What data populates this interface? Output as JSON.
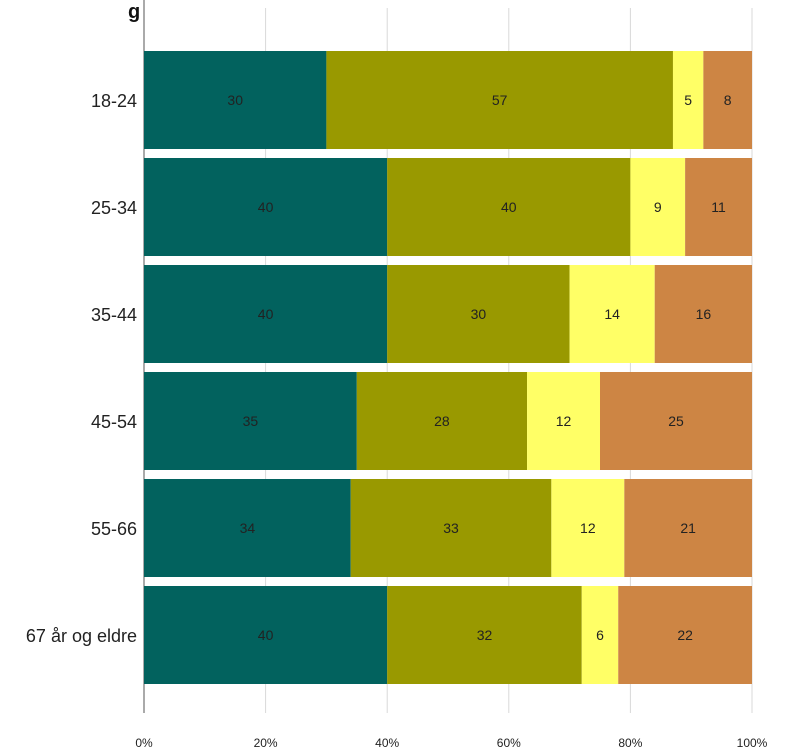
{
  "chart_data": {
    "type": "bar",
    "orientation": "horizontal",
    "stacked": "percent",
    "title": "g",
    "categories": [
      "18-24",
      "25-34",
      "35-44",
      "45-54",
      "55-66",
      "67 år og eldre"
    ],
    "series": [
      {
        "color": "#02625e",
        "values": [
          30,
          40,
          40,
          35,
          34,
          40
        ]
      },
      {
        "color": "#999900",
        "values": [
          57,
          40,
          30,
          28,
          33,
          32
        ]
      },
      {
        "color": "#ffff66",
        "values": [
          5,
          9,
          14,
          12,
          12,
          6
        ]
      },
      {
        "color": "#cd8544",
        "values": [
          8,
          11,
          16,
          25,
          21,
          22
        ]
      }
    ],
    "x_ticks": [
      "0%",
      "20%",
      "40%",
      "60%",
      "80%",
      "100%"
    ],
    "xlim": [
      0,
      100
    ],
    "grid": "vertical"
  }
}
